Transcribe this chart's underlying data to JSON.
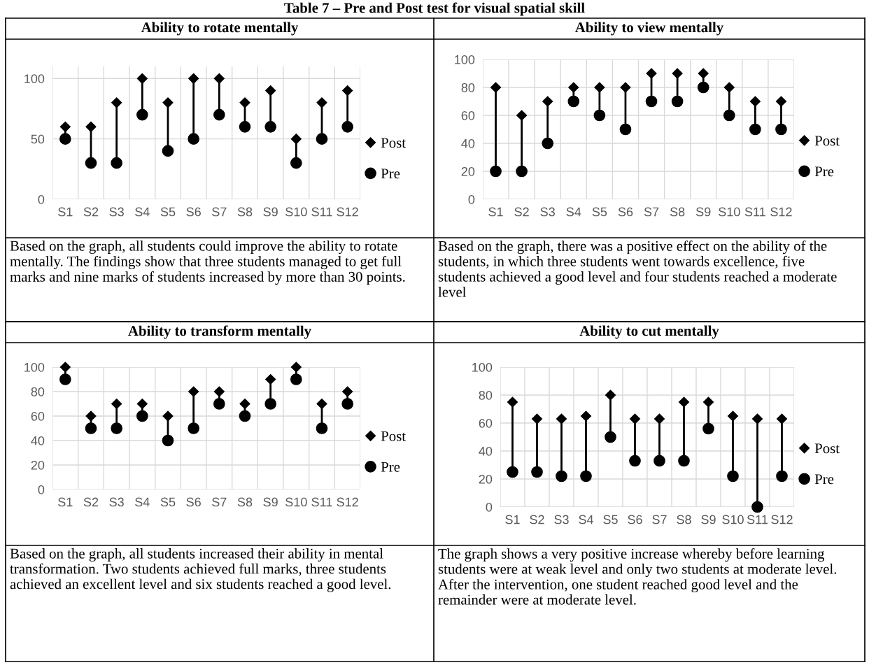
{
  "chart_data": [
    {
      "type": "scatter",
      "title": "Ability to rotate mentally",
      "categories": [
        "S1",
        "S2",
        "S3",
        "S4",
        "S5",
        "S6",
        "S7",
        "S8",
        "S9",
        "S10",
        "S11",
        "S12"
      ],
      "series": [
        {
          "name": "Post",
          "color": "#000000",
          "marker": "diamond",
          "values": [
            60,
            60,
            80,
            100,
            80,
            100,
            100,
            80,
            90,
            50,
            80,
            90
          ]
        },
        {
          "name": "Pre",
          "color": "#000000",
          "marker": "circle",
          "values": [
            50,
            30,
            30,
            70,
            40,
            50,
            70,
            60,
            60,
            30,
            50,
            60
          ]
        }
      ],
      "ylim": [
        0,
        110
      ],
      "yticks": [
        0,
        50,
        100
      ],
      "grid": true,
      "legend": "right",
      "annotations": [
        "Table 7 – Pre and Post test for visual spatial skill",
        "Based on the graph, all students could improve the ability to rotate mentally. The findings show that three students managed to get full marks and nine marks of students increased by more than 30 points."
      ]
    },
    {
      "type": "scatter",
      "title": "Ability to view mentally",
      "categories": [
        "S1",
        "S2",
        "S3",
        "S4",
        "S5",
        "S6",
        "S7",
        "S8",
        "S9",
        "S10",
        "S11",
        "S12"
      ],
      "series": [
        {
          "name": "Post",
          "color": "#000000",
          "marker": "diamond",
          "values": [
            80,
            60,
            70,
            80,
            80,
            80,
            90,
            90,
            90,
            80,
            70,
            70
          ]
        },
        {
          "name": "Pre",
          "color": "#000000",
          "marker": "circle",
          "values": [
            20,
            20,
            40,
            70,
            60,
            50,
            70,
            70,
            80,
            60,
            50,
            50
          ]
        }
      ],
      "ylim": [
        0,
        100
      ],
      "yticks": [
        0,
        20,
        40,
        60,
        80,
        100
      ],
      "grid": true,
      "legend": "right",
      "annotations": [
        "Based on the graph, there was a positive effect on the ability of the students, in which three students went towards excellence, five students achieved a good level and four students reached a moderate level"
      ]
    },
    {
      "type": "scatter",
      "title": "Ability to transform mentally",
      "categories": [
        "S1",
        "S2",
        "S3",
        "S4",
        "S5",
        "S6",
        "S7",
        "S8",
        "S9",
        "S10",
        "S11",
        "S12"
      ],
      "series": [
        {
          "name": "Post",
          "color": "#000000",
          "marker": "diamond",
          "values": [
            100,
            60,
            70,
            70,
            60,
            80,
            80,
            70,
            90,
            100,
            70,
            80
          ]
        },
        {
          "name": "Pre",
          "color": "#000000",
          "marker": "circle",
          "values": [
            90,
            50,
            50,
            60,
            40,
            50,
            70,
            60,
            70,
            90,
            50,
            70
          ]
        }
      ],
      "ylim": [
        0,
        100
      ],
      "yticks": [
        0,
        20,
        40,
        60,
        80,
        100
      ],
      "grid": true,
      "legend": "right",
      "annotations": [
        "Based on the graph, all students increased their ability in mental transformation. Two students achieved full marks, three students achieved an excellent level and six students reached a good level."
      ]
    },
    {
      "type": "scatter",
      "title": "Ability to cut mentally",
      "categories": [
        "S1",
        "S2",
        "S3",
        "S4",
        "S5",
        "S6",
        "S7",
        "S8",
        "S9",
        "S10",
        "S11",
        "S12"
      ],
      "series": [
        {
          "name": "Post",
          "color": "#000000",
          "marker": "diamond",
          "values": [
            75,
            63,
            63,
            65,
            80,
            63,
            63,
            75,
            75,
            65,
            63,
            63
          ]
        },
        {
          "name": "Pre",
          "color": "#000000",
          "marker": "circle",
          "values": [
            25,
            25,
            22,
            22,
            50,
            33,
            33,
            33,
            56,
            22,
            0,
            22
          ]
        }
      ],
      "ylim": [
        0,
        100
      ],
      "yticks": [
        0,
        20,
        40,
        60,
        80,
        100
      ],
      "grid": true,
      "legend": "right",
      "annotations": [
        "The graph shows a very positive increase whereby before learning students were at weak level and only two students at moderate level. After the intervention, one student reached good level and the remainder were at moderate level."
      ]
    }
  ]
}
